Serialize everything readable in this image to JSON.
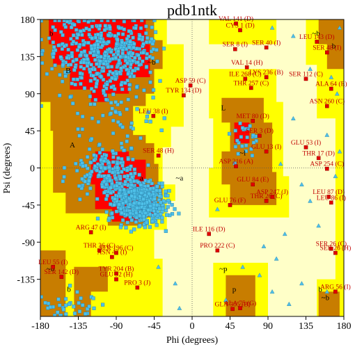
{
  "chart_data": {
    "type": "scatter",
    "title": "pdb1ntk",
    "xlabel": "Phi (degrees)",
    "ylabel": "Psi (degrees)",
    "xlim": [
      -180,
      180
    ],
    "ylim": [
      -180,
      180
    ],
    "x_ticks": [
      -180,
      -135,
      -90,
      -45,
      0,
      45,
      90,
      135,
      180
    ],
    "y_ticks": [
      180,
      135,
      90,
      45,
      0,
      -45,
      -90,
      -135
    ],
    "colors": {
      "core": "#ff0000",
      "allowed": "#c87d00",
      "generous": "#ffff00",
      "outside": "#ffffc8",
      "point": "#4ec0e8",
      "outlier": "#e00000"
    },
    "region_labels": [
      {
        "text": "b",
        "x": -167,
        "y": 160
      },
      {
        "text": "B",
        "x": -147,
        "y": 115
      },
      {
        "text": "~b",
        "x": -48,
        "y": 125
      },
      {
        "text": "A",
        "x": -142,
        "y": 25
      },
      {
        "text": "a",
        "x": -60,
        "y": -15
      },
      {
        "text": "~a",
        "x": -15,
        "y": -15
      },
      {
        "text": "L",
        "x": 37,
        "y": 70
      },
      {
        "text": "~l",
        "x": 60,
        "y": 15
      },
      {
        "text": "~b",
        "x": 147,
        "y": 160
      },
      {
        "text": "b",
        "x": 168,
        "y": 145
      },
      {
        "text": "~b",
        "x": -168,
        "y": -125
      },
      {
        "text": "b",
        "x": -146,
        "y": -150
      },
      {
        "text": "~p",
        "x": 37,
        "y": -125
      },
      {
        "text": "p",
        "x": 50,
        "y": -150
      },
      {
        "text": "~b",
        "x": 158,
        "y": -160
      },
      {
        "text": "b",
        "x": 152,
        "y": -150
      }
    ],
    "outliers": [
      {
        "label": "VAL 141 (D)",
        "x": 52,
        "y": 175
      },
      {
        "label": "CYS 1 (D)",
        "x": 57,
        "y": 167
      },
      {
        "label": "SER 8 (I)",
        "x": 51,
        "y": 144
      },
      {
        "label": "SER 40 (I)",
        "x": 88,
        "y": 146
      },
      {
        "label": "LEU 143 (D)",
        "x": 148,
        "y": 153
      },
      {
        "label": "SER 48 (I)",
        "x": 160,
        "y": 140
      },
      {
        "label": "VAL 14 (H)",
        "x": 65,
        "y": 122
      },
      {
        "label": "ILE 268 (C)",
        "x": 63,
        "y": 108
      },
      {
        "label": "LYS 236 (B)",
        "x": 88,
        "y": 110
      },
      {
        "label": "SER 112 (C)",
        "x": 135,
        "y": 108
      },
      {
        "label": "THR 257 (C)",
        "x": 70,
        "y": 97
      },
      {
        "label": "ASP 59 (C)",
        "x": -2,
        "y": 100
      },
      {
        "label": "TYR 134 (D)",
        "x": -10,
        "y": 88
      },
      {
        "label": "ALA 64 (E)",
        "x": 165,
        "y": 96
      },
      {
        "label": "ASN 260 (C)",
        "x": 160,
        "y": 75
      },
      {
        "label": "LEU 38 (I)",
        "x": -46,
        "y": 63
      },
      {
        "label": "MET 80 (D)",
        "x": 72,
        "y": 57
      },
      {
        "label": "SER 3 (D)",
        "x": 80,
        "y": 39
      },
      {
        "label": "GLU 53 (I)",
        "x": 135,
        "y": 25
      },
      {
        "label": "THR 17 (D)",
        "x": 150,
        "y": 12
      },
      {
        "label": "GLU 13 (I)",
        "x": 88,
        "y": 20
      },
      {
        "label": "SER 48 (H)",
        "x": -40,
        "y": 15
      },
      {
        "label": "ASP 216 (A)",
        "x": 52,
        "y": 2
      },
      {
        "label": "ASP 254 (C)",
        "x": 160,
        "y": -1
      },
      {
        "label": "GLU 84 (E)",
        "x": 72,
        "y": -20
      },
      {
        "label": "ASP 247 (J)",
        "x": 95,
        "y": -35
      },
      {
        "label": "THR 26 (C)",
        "x": 88,
        "y": -40
      },
      {
        "label": "GLU 76 (F)",
        "x": 45,
        "y": -45
      },
      {
        "label": "LEU 87 (D)",
        "x": 162,
        "y": -35
      },
      {
        "label": "LEU 86 (I)",
        "x": 165,
        "y": -42
      },
      {
        "label": "ILE 116 (D)",
        "x": 20,
        "y": -80
      },
      {
        "label": "PRO 222 (C)",
        "x": 30,
        "y": -100
      },
      {
        "label": "ARG 47 (I)",
        "x": -120,
        "y": -78
      },
      {
        "label": "THR 36 (C)",
        "x": -110,
        "y": -100
      },
      {
        "label": "SER 196 (C)",
        "x": -90,
        "y": -103
      },
      {
        "label": "SER 26 (C)",
        "x": 165,
        "y": -98
      },
      {
        "label": "SER 26 (H)",
        "x": 170,
        "y": -103
      },
      {
        "label": "ASN 47 (I)",
        "x": -95,
        "y": -108
      },
      {
        "label": "LEU 55 (I)",
        "x": -165,
        "y": -120
      },
      {
        "label": "SER 142 (D)",
        "x": -155,
        "y": -132
      },
      {
        "label": "TYR 204 (B)",
        "x": -90,
        "y": -128
      },
      {
        "label": "GLU 92 (H)",
        "x": -90,
        "y": -135
      },
      {
        "label": "PRO 3 (J)",
        "x": -65,
        "y": -145
      },
      {
        "label": "ARG 56 (I)",
        "x": 170,
        "y": -150
      },
      {
        "label": "ALA 75 (G)",
        "x": 57,
        "y": -170
      },
      {
        "label": "GLN 305 (B)",
        "x": 48,
        "y": -171
      }
    ]
  }
}
